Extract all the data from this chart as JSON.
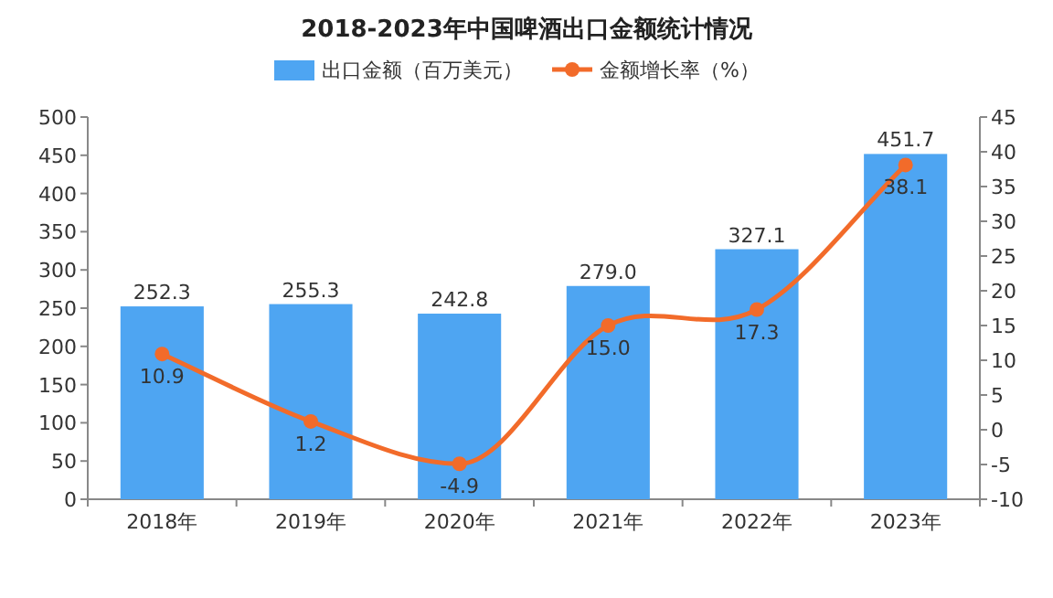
{
  "chart_data": {
    "type": "bar",
    "title": "2018-2023年中国啤酒出口金额统计情况",
    "categories": [
      "2018年",
      "2019年",
      "2020年",
      "2021年",
      "2022年",
      "2023年"
    ],
    "series": [
      {
        "name": "出口金额（百万美元）",
        "color": "#4ea5f2",
        "values": [
          252.3,
          255.3,
          242.8,
          279.0,
          327.1,
          451.7
        ],
        "value_labels": [
          "252.3",
          "255.3",
          "242.8",
          "279.0",
          "327.1",
          "451.7"
        ]
      },
      {
        "name": "金额增长率（%）",
        "type": "line",
        "axis": "y2",
        "color": "#f26b2a",
        "marker": "circle",
        "values": [
          10.9,
          1.2,
          -4.9,
          15.0,
          17.3,
          38.1
        ],
        "value_labels": [
          "10.9",
          "1.2",
          "-4.9",
          "15.0",
          "17.3",
          "38.1"
        ]
      }
    ],
    "ylim": [
      0,
      500
    ],
    "yticks": [
      0,
      50,
      100,
      150,
      200,
      250,
      300,
      350,
      400,
      450,
      500
    ],
    "y2lim": [
      -10,
      45
    ],
    "y2ticks": [
      -10,
      -5,
      0,
      5,
      10,
      15,
      20,
      25,
      30,
      35,
      40,
      45
    ],
    "legend": "top"
  }
}
